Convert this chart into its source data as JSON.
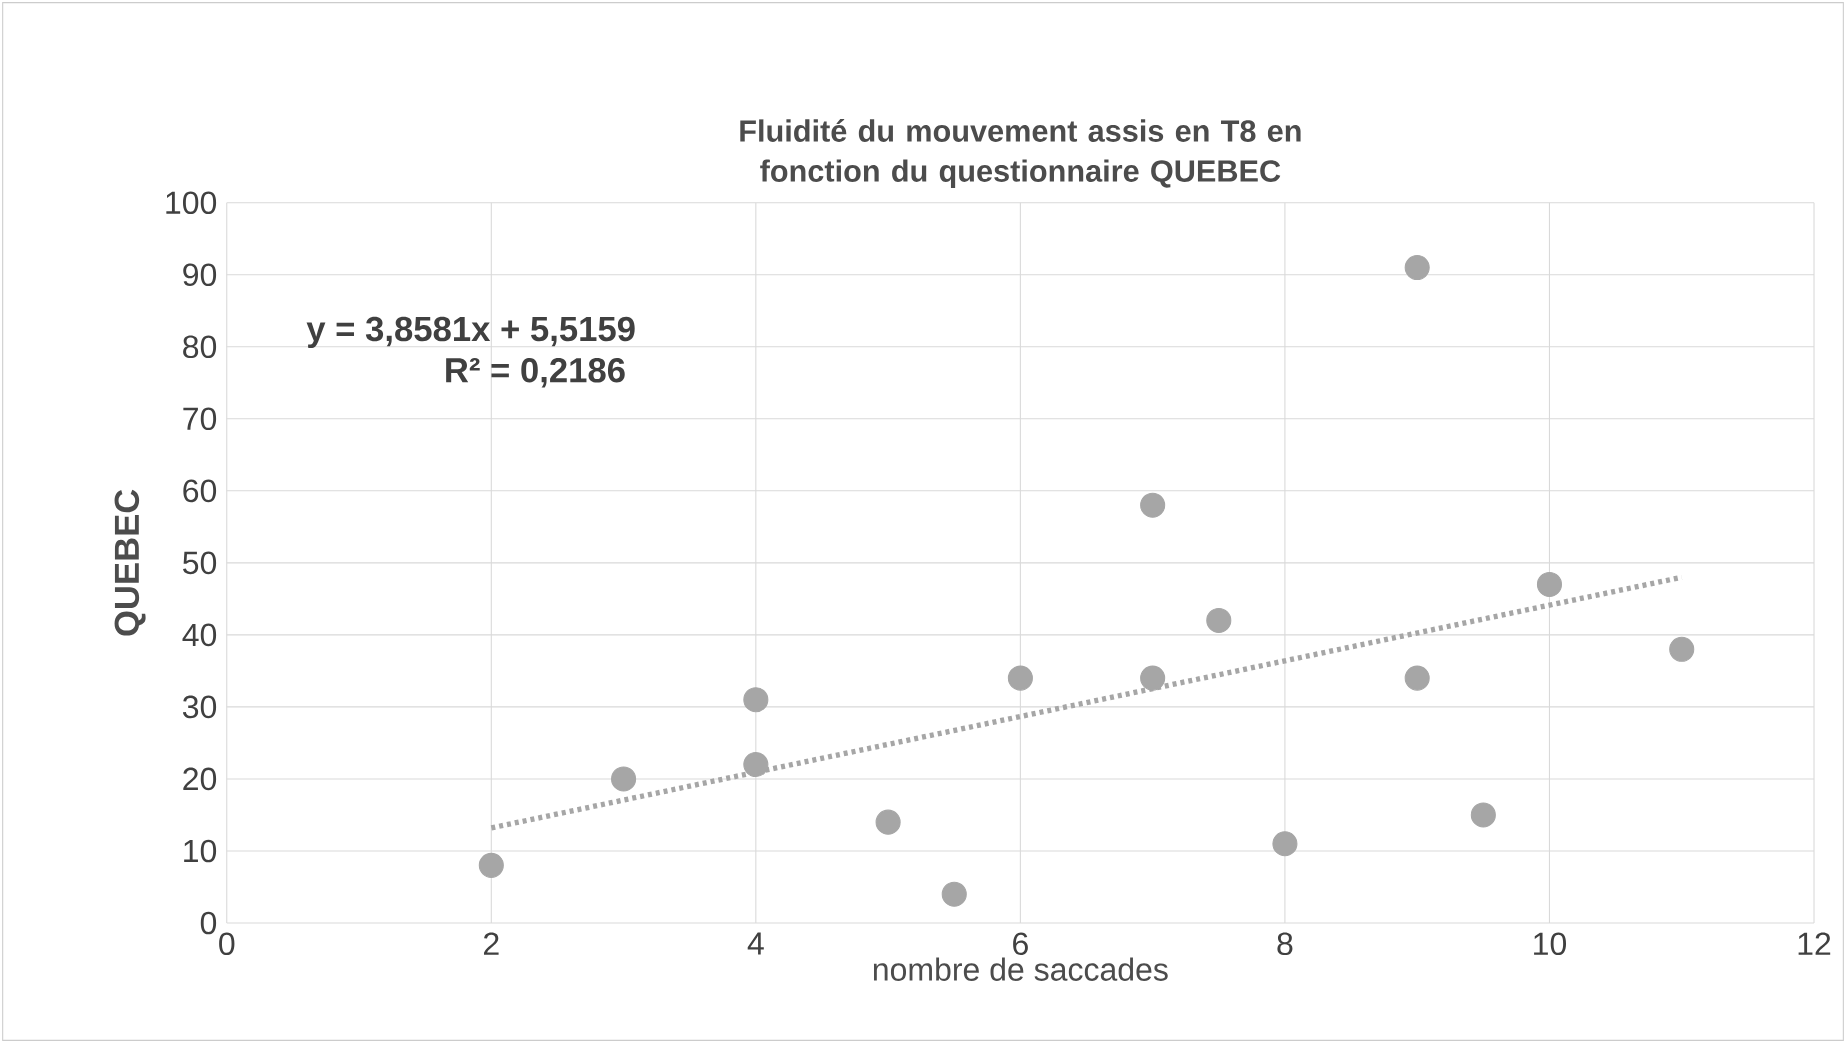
{
  "chart_data": {
    "type": "scatter",
    "title": "Fluidité du mouvement assis en T8 en fonction du questionnaire QUEBEC",
    "xlabel": "nombre de saccades",
    "ylabel": "QUEBEC",
    "annotations": [
      "y = 3,8581x + 5,5159",
      "R² = 0,2186"
    ],
    "x": [
      2,
      3,
      4,
      4,
      5,
      5.5,
      6,
      7,
      7,
      7.5,
      8,
      9,
      9,
      9.5,
      10,
      11
    ],
    "series": [
      {
        "color": "#a6a6a6",
        "marker": "circle",
        "values": [
          8,
          20,
          31,
          22,
          14,
          4,
          34,
          58,
          34,
          42,
          11,
          91,
          34,
          15,
          47,
          38
        ]
      },
      {
        "type": "line",
        "x": [
          2,
          11
        ],
        "color": "#a6a6a6",
        "line_style": "dotted",
        "values": [
          13.2,
          48
        ]
      }
    ],
    "xlim": [
      0,
      12
    ],
    "ylim": [
      0,
      100
    ],
    "xticks": [
      0,
      2,
      4,
      6,
      8,
      10,
      12
    ],
    "yticks": [
      0,
      10,
      20,
      30,
      40,
      50,
      60,
      70,
      80,
      90,
      100
    ],
    "grid": true
  }
}
